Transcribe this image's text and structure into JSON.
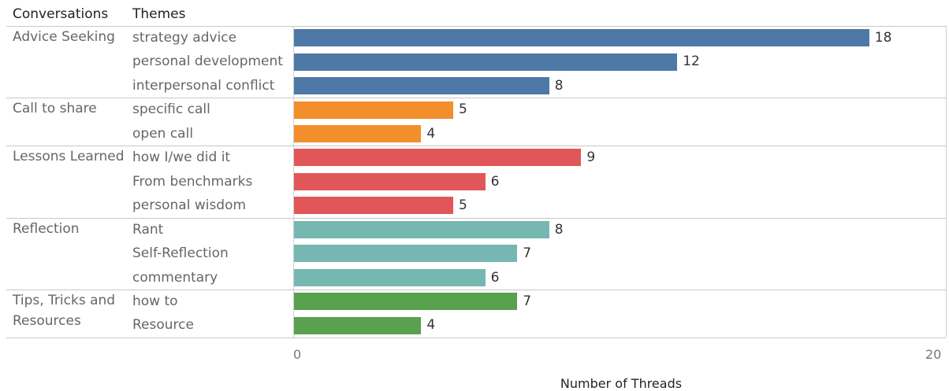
{
  "chart_data": {
    "type": "bar",
    "orientation": "horizontal",
    "column_headers": [
      "Conversations",
      "Themes"
    ],
    "xlabel": "Number of Threads",
    "xlim": [
      0,
      20
    ],
    "xticks": [
      "0",
      "20"
    ],
    "groups": [
      {
        "name": "Advice Seeking",
        "color": "#4e79a7",
        "themes": [
          {
            "label": "strategy advice",
            "value": 18
          },
          {
            "label": "personal development",
            "value": 12
          },
          {
            "label": "interpersonal conflict",
            "value": 8
          }
        ]
      },
      {
        "name": "Call to share",
        "color": "#f28e2b",
        "themes": [
          {
            "label": "specific call",
            "value": 5
          },
          {
            "label": "open call",
            "value": 4
          }
        ]
      },
      {
        "name": "Lessons Learned",
        "color": "#e15759",
        "themes": [
          {
            "label": "how I/we did it",
            "value": 9
          },
          {
            "label": "From benchmarks",
            "value": 6
          },
          {
            "label": "personal wisdom",
            "value": 5
          }
        ]
      },
      {
        "name": "Reflection",
        "color": "#76b7b2",
        "themes": [
          {
            "label": "Rant",
            "value": 8
          },
          {
            "label": "Self-Reflection",
            "value": 7
          },
          {
            "label": "commentary",
            "value": 6
          }
        ]
      },
      {
        "name": "Tips, Tricks and\nResources",
        "color": "#59a14f",
        "themes": [
          {
            "label": "how to",
            "value": 7
          },
          {
            "label": "Resource",
            "value": 4
          }
        ]
      }
    ]
  }
}
